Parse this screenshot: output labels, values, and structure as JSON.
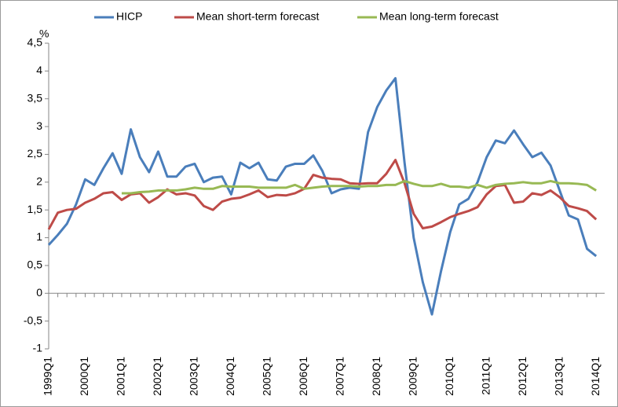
{
  "chart_data": {
    "type": "line",
    "y_label": "%",
    "categories": [
      "1999Q1",
      null,
      null,
      null,
      "2000Q1",
      null,
      null,
      null,
      "2001Q1",
      null,
      null,
      null,
      "2002Q1",
      null,
      null,
      null,
      "2003Q1",
      null,
      null,
      null,
      "2004Q1",
      null,
      null,
      null,
      "2005Q1",
      null,
      null,
      null,
      "2006Q1",
      null,
      null,
      null,
      "2007Q1",
      null,
      null,
      null,
      "2008Q1",
      null,
      null,
      null,
      "2009Q1",
      null,
      null,
      null,
      "2010Q1",
      null,
      null,
      null,
      "2011Q1",
      null,
      null,
      null,
      "2012Q1",
      null,
      null,
      null,
      "2013Q1",
      null,
      null,
      null,
      "2014Q1"
    ],
    "series": [
      {
        "name": "HICP",
        "color": "#4a7ebb",
        "values": [
          0.87,
          1.05,
          1.25,
          1.6,
          2.05,
          1.95,
          2.25,
          2.52,
          2.15,
          2.95,
          2.45,
          2.18,
          2.55,
          2.1,
          2.1,
          2.28,
          2.33,
          2.0,
          2.08,
          2.1,
          1.78,
          2.35,
          2.25,
          2.35,
          2.05,
          2.03,
          2.28,
          2.33,
          2.33,
          2.48,
          2.2,
          1.8,
          1.87,
          1.9,
          1.88,
          2.9,
          3.35,
          3.65,
          3.87,
          2.35,
          1.0,
          0.2,
          -0.38,
          0.4,
          1.1,
          1.6,
          1.7,
          2.0,
          2.45,
          2.75,
          2.7,
          2.93,
          2.68,
          2.45,
          2.53,
          2.3,
          1.85,
          1.4,
          1.33,
          0.8,
          0.67
        ]
      },
      {
        "name": "Mean short-term forecast",
        "color": "#be4b48",
        "values": [
          1.15,
          1.45,
          1.5,
          1.52,
          1.63,
          1.7,
          1.8,
          1.82,
          1.68,
          1.78,
          1.8,
          1.63,
          1.73,
          1.87,
          1.78,
          1.8,
          1.76,
          1.57,
          1.5,
          1.65,
          1.7,
          1.72,
          1.78,
          1.85,
          1.73,
          1.77,
          1.76,
          1.8,
          1.88,
          2.13,
          2.08,
          2.06,
          2.05,
          1.98,
          1.97,
          1.98,
          1.98,
          2.15,
          2.4,
          1.98,
          1.43,
          1.17,
          1.2,
          1.28,
          1.37,
          1.43,
          1.48,
          1.55,
          1.78,
          1.93,
          1.95,
          1.63,
          1.65,
          1.8,
          1.77,
          1.85,
          1.73,
          1.57,
          1.53,
          1.48,
          1.33
        ]
      },
      {
        "name": "Mean long-term forecast",
        "color": "#98b954",
        "values": [
          null,
          null,
          null,
          null,
          null,
          null,
          null,
          null,
          1.8,
          1.8,
          1.82,
          1.83,
          1.85,
          1.85,
          1.85,
          1.87,
          1.9,
          1.88,
          1.88,
          1.93,
          1.92,
          1.92,
          1.92,
          1.9,
          1.9,
          1.9,
          1.9,
          1.95,
          1.88,
          1.9,
          1.92,
          1.93,
          1.93,
          1.93,
          1.92,
          1.93,
          1.93,
          1.95,
          1.95,
          2.02,
          1.97,
          1.93,
          1.93,
          1.97,
          1.92,
          1.92,
          1.9,
          1.95,
          1.9,
          1.95,
          1.97,
          1.98,
          2.0,
          1.98,
          1.98,
          2.02,
          1.98,
          1.98,
          1.97,
          1.95,
          1.85
        ]
      }
    ],
    "ylim": [
      -1,
      4.5
    ],
    "yticks": [
      {
        "value": -1,
        "label": "-1"
      },
      {
        "value": -0.5,
        "label": "-0,5"
      },
      0,
      {
        "value": 0.5,
        "label": "0,5"
      },
      1,
      {
        "value": 1.5,
        "label": "1,5"
      },
      2,
      {
        "value": 2.5,
        "label": "2,5"
      },
      3,
      {
        "value": 3.5,
        "label": "3,5"
      },
      4,
      {
        "value": 4.5,
        "label": "4,5"
      }
    ],
    "grid": false,
    "legend": "top"
  }
}
